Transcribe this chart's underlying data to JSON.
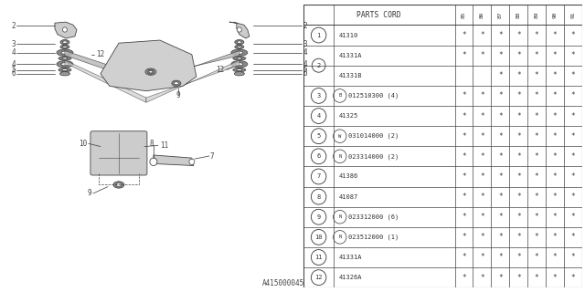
{
  "bg_color": "#ffffff",
  "diagram_code": "A415000045",
  "header": "PARTS CORD",
  "col_headers": [
    "85",
    "86",
    "87",
    "88",
    "89",
    "90",
    "91"
  ],
  "rows": [
    {
      "num": "1",
      "merge": false,
      "prefix": "",
      "part": "41310",
      "suffix": "",
      "stars": [
        1,
        1,
        1,
        1,
        1,
        1,
        1
      ]
    },
    {
      "num": "2",
      "merge": true,
      "prefix": "",
      "part": "41331A",
      "suffix": "",
      "stars": [
        1,
        1,
        1,
        1,
        1,
        1,
        1
      ]
    },
    {
      "num": "2",
      "merge": true,
      "prefix": "",
      "part": "41331B",
      "suffix": "",
      "stars": [
        0,
        0,
        1,
        1,
        1,
        1,
        1
      ]
    },
    {
      "num": "3",
      "merge": false,
      "prefix": "B",
      "part": "012510300",
      "suffix": "(4)",
      "stars": [
        1,
        1,
        1,
        1,
        1,
        1,
        1
      ]
    },
    {
      "num": "4",
      "merge": false,
      "prefix": "",
      "part": "41325",
      "suffix": "",
      "stars": [
        1,
        1,
        1,
        1,
        1,
        1,
        1
      ]
    },
    {
      "num": "5",
      "merge": false,
      "prefix": "W",
      "part": "031014000",
      "suffix": "(2)",
      "stars": [
        1,
        1,
        1,
        1,
        1,
        1,
        1
      ]
    },
    {
      "num": "6",
      "merge": false,
      "prefix": "N",
      "part": "023314000",
      "suffix": "(2)",
      "stars": [
        1,
        1,
        1,
        1,
        1,
        1,
        1
      ]
    },
    {
      "num": "7",
      "merge": false,
      "prefix": "",
      "part": "41386",
      "suffix": "",
      "stars": [
        1,
        1,
        1,
        1,
        1,
        1,
        1
      ]
    },
    {
      "num": "8",
      "merge": false,
      "prefix": "",
      "part": "41087",
      "suffix": "",
      "stars": [
        1,
        1,
        1,
        1,
        1,
        1,
        1
      ]
    },
    {
      "num": "9",
      "merge": false,
      "prefix": "N",
      "part": "023312000",
      "suffix": "(6)",
      "stars": [
        1,
        1,
        1,
        1,
        1,
        1,
        1
      ]
    },
    {
      "num": "10",
      "merge": false,
      "prefix": "N",
      "part": "023512000",
      "suffix": "(1)",
      "stars": [
        1,
        1,
        1,
        1,
        1,
        1,
        1
      ]
    },
    {
      "num": "11",
      "merge": false,
      "prefix": "",
      "part": "41331A",
      "suffix": "",
      "stars": [
        1,
        1,
        1,
        1,
        1,
        1,
        1
      ]
    },
    {
      "num": "12",
      "merge": false,
      "prefix": "",
      "part": "41326A",
      "suffix": "",
      "stars": [
        1,
        1,
        1,
        1,
        1,
        1,
        1
      ]
    }
  ],
  "lc": "#444444",
  "tc": "#333333"
}
